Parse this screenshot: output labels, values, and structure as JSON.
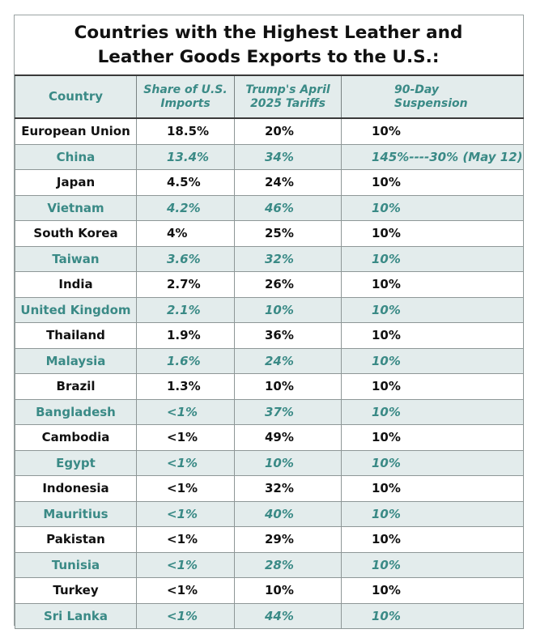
{
  "title": {
    "line1": "Countries with the Highest Leather and",
    "line2": "Leather Goods Exports to the U.S.:"
  },
  "headers": {
    "country": "Country",
    "share_line1": "Share of U.S.",
    "share_line2": "Imports",
    "tariff_line1": "Trump's April",
    "tariff_line2": "2025 Tariffs",
    "susp_line1": "90-Day",
    "susp_line2": "Suspension"
  },
  "rows": [
    {
      "country": "European Union",
      "share": "18.5%",
      "tariff": "20%",
      "suspension": "10%"
    },
    {
      "country": "China",
      "share": "13.4%",
      "tariff": "34%",
      "suspension": "145%----30% (May 12)"
    },
    {
      "country": "Japan",
      "share": "4.5%",
      "tariff": "24%",
      "suspension": "10%"
    },
    {
      "country": "Vietnam",
      "share": "4.2%",
      "tariff": "46%",
      "suspension": "10%"
    },
    {
      "country": "South Korea",
      "share": "4%",
      "tariff": "25%",
      "suspension": "10%"
    },
    {
      "country": "Taiwan",
      "share": "3.6%",
      "tariff": "32%",
      "suspension": "10%"
    },
    {
      "country": "India",
      "share": "2.7%",
      "tariff": "26%",
      "suspension": "10%"
    },
    {
      "country": "United Kingdom",
      "share": "2.1%",
      "tariff": "10%",
      "suspension": "10%"
    },
    {
      "country": "Thailand",
      "share": "1.9%",
      "tariff": "36%",
      "suspension": "10%"
    },
    {
      "country": "Malaysia",
      "share": "1.6%",
      "tariff": "24%",
      "suspension": "10%"
    },
    {
      "country": "Brazil",
      "share": "1.3%",
      "tariff": "10%",
      "suspension": "10%"
    },
    {
      "country": "Bangladesh",
      "share": "<1%",
      "tariff": "37%",
      "suspension": "10%"
    },
    {
      "country": "Cambodia",
      "share": "<1%",
      "tariff": "49%",
      "suspension": "10%"
    },
    {
      "country": "Egypt",
      "share": "<1%",
      "tariff": "10%",
      "suspension": "10%"
    },
    {
      "country": "Indonesia",
      "share": "<1%",
      "tariff": "32%",
      "suspension": "10%"
    },
    {
      "country": "Mauritius",
      "share": "<1%",
      "tariff": "40%",
      "suspension": "10%"
    },
    {
      "country": "Pakistan",
      "share": "<1%",
      "tariff": "29%",
      "suspension": "10%"
    },
    {
      "country": "Tunisia",
      "share": "<1%",
      "tariff": "28%",
      "suspension": "10%"
    },
    {
      "country": "Turkey",
      "share": "<1%",
      "tariff": "10%",
      "suspension": "10%"
    },
    {
      "country": "Sri Lanka",
      "share": "<1%",
      "tariff": "44%",
      "suspension": "10%"
    }
  ],
  "colors": {
    "accent_teal": "#3a8a86",
    "band_fill": "#e3ecec",
    "text_dark": "#111111"
  }
}
